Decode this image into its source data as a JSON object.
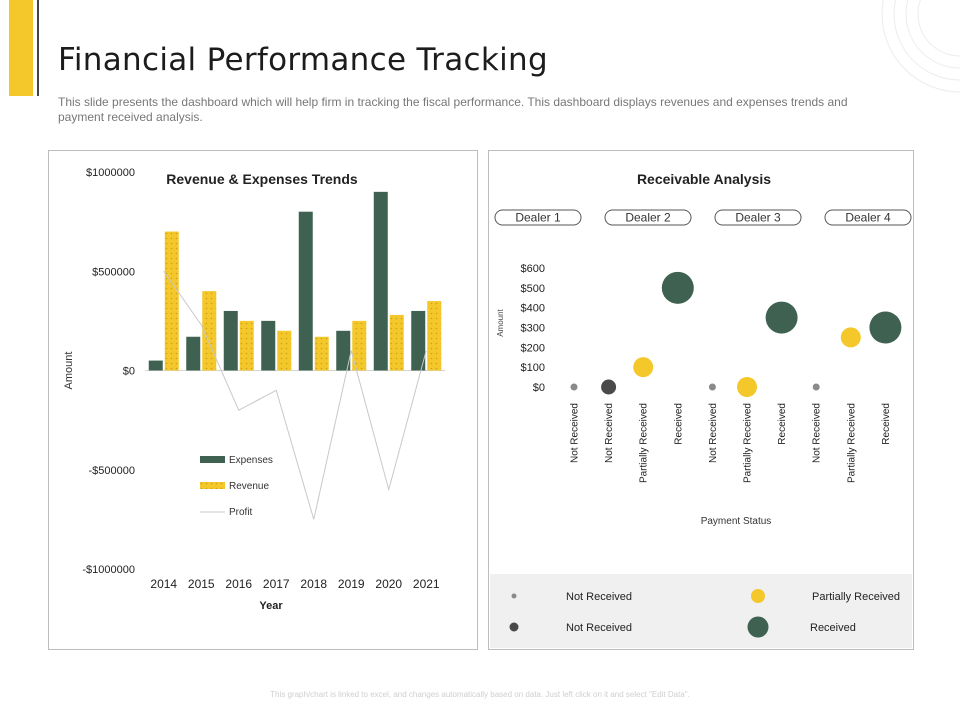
{
  "slide": {
    "title": "Financial Performance Tracking",
    "subtitle": "This slide presents the dashboard which will help firm in tracking the fiscal performance. This dashboard displays revenues and expenses trends and payment received analysis.",
    "footer": "This graph/chart is linked to excel, and changes automatically based on data. Just left click on it and select \"Edit Data\"."
  },
  "colors": {
    "accent_yellow": "#f4c72b",
    "dark_green": "#3e6152",
    "dark_gray": "#4a4a4a",
    "gray": "#8a8a8a",
    "profit_line": "#c8c8c8"
  },
  "chart_data": [
    {
      "type": "bar",
      "title": "Revenue & Expenses Trends",
      "xlabel": "Year",
      "ylabel": "Amount",
      "categories": [
        "2014",
        "2015",
        "2016",
        "2017",
        "2018",
        "2019",
        "2020",
        "2021"
      ],
      "series": [
        {
          "name": "Expenses",
          "kind": "bar",
          "color": "#3e6152",
          "values": [
            50000,
            170000,
            300000,
            250000,
            800000,
            200000,
            900000,
            300000
          ]
        },
        {
          "name": "Revenue",
          "kind": "bar",
          "color": "#f4c72b",
          "pattern": "dots",
          "values": [
            700000,
            400000,
            250000,
            200000,
            170000,
            250000,
            280000,
            350000
          ]
        },
        {
          "name": "Profit",
          "kind": "line",
          "color": "#c8c8c8",
          "values": [
            500000,
            230000,
            -200000,
            -100000,
            -750000,
            100000,
            -600000,
            100000
          ]
        }
      ],
      "ylim": [
        -1000000,
        1000000
      ],
      "yticks": [
        1000000,
        500000,
        0,
        -500000,
        -1000000
      ],
      "ytick_labels": [
        "$1000000",
        "$500000",
        "$0",
        "-$500000",
        "-$1000000"
      ],
      "legend": "inside-bottom-left",
      "grid": false
    },
    {
      "type": "scatter",
      "title": "Receivable Analysis",
      "xlabel": "Payment Status",
      "ylabel": "Amount",
      "groups": [
        "Dealer 1",
        "Dealer 2",
        "Dealer 3",
        "Dealer 4"
      ],
      "categories": [
        "Not Received",
        "Not Received",
        "Partially Received",
        "Received",
        "Not Received",
        "Partially Received",
        "Received",
        "Not Received",
        "Partially Received",
        "Received"
      ],
      "values": [
        0,
        0,
        100,
        500,
        0,
        0,
        350,
        0,
        250,
        300
      ],
      "point_types": [
        "small",
        "dark",
        "yellow",
        "green",
        "small",
        "yellow",
        "green",
        "small",
        "yellow",
        "green"
      ],
      "ylim": [
        0,
        600
      ],
      "yticks": [
        0,
        100,
        200,
        300,
        400,
        500,
        600
      ],
      "ytick_labels": [
        "$0",
        "$100",
        "$200",
        "$300",
        "$400",
        "$500",
        "$600"
      ],
      "grid": false,
      "legend": [
        {
          "label": "Not Received",
          "type": "small"
        },
        {
          "label": "Partially Received",
          "type": "yellow"
        },
        {
          "label": "Not Received",
          "type": "dark"
        },
        {
          "label": "Received",
          "type": "green"
        }
      ]
    }
  ]
}
